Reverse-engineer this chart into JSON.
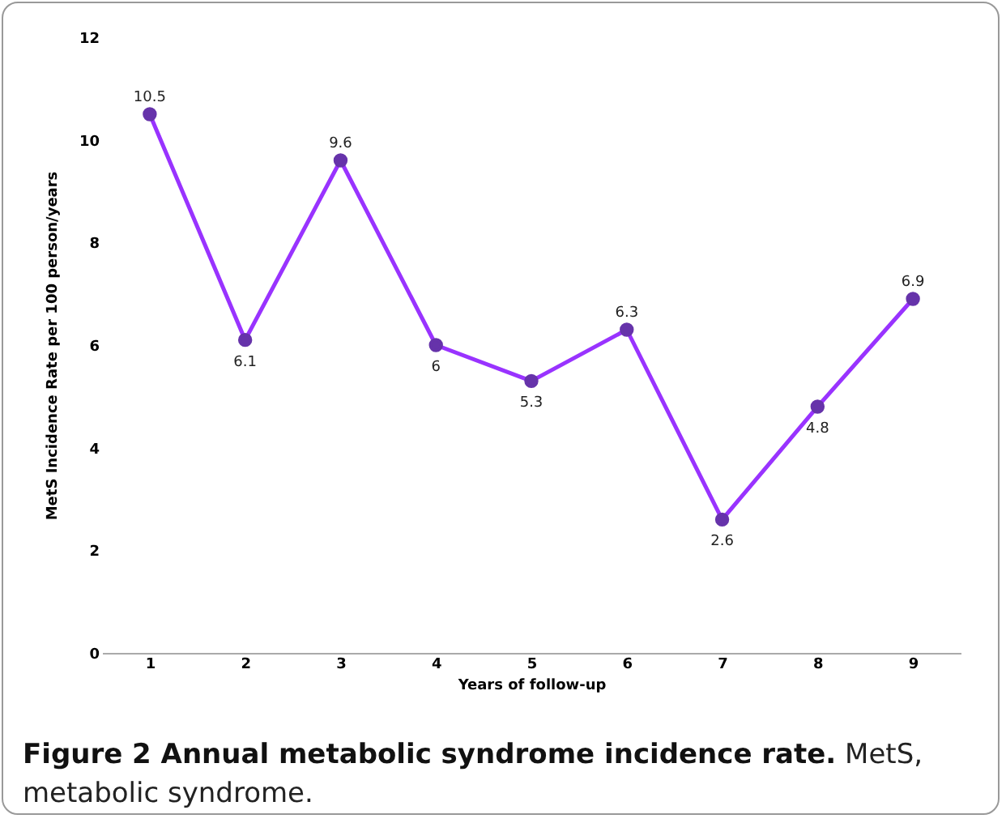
{
  "chart_data": {
    "type": "line",
    "title": "Figure 2 Annual metabolic syndrome incidence rate.",
    "annotations": [
      "MetS, metabolic syndrome."
    ],
    "xlabel": "Years of follow-up",
    "ylabel": "MetS Incidence Rate per 100 person/years",
    "categories": [
      "1",
      "2",
      "3",
      "4",
      "5",
      "6",
      "7",
      "8",
      "9"
    ],
    "series": [
      {
        "color": "#9933ff",
        "values": [
          10.5,
          6.1,
          9.6,
          6,
          5.3,
          6.3,
          2.6,
          4.8,
          6.9
        ]
      }
    ],
    "ylim": [
      0,
      12
    ],
    "yticks": [
      0,
      2,
      4,
      6,
      8,
      10,
      12
    ],
    "grid": false,
    "legend": false,
    "marker": "circle",
    "line_style": "solid",
    "data_labels": true
  }
}
